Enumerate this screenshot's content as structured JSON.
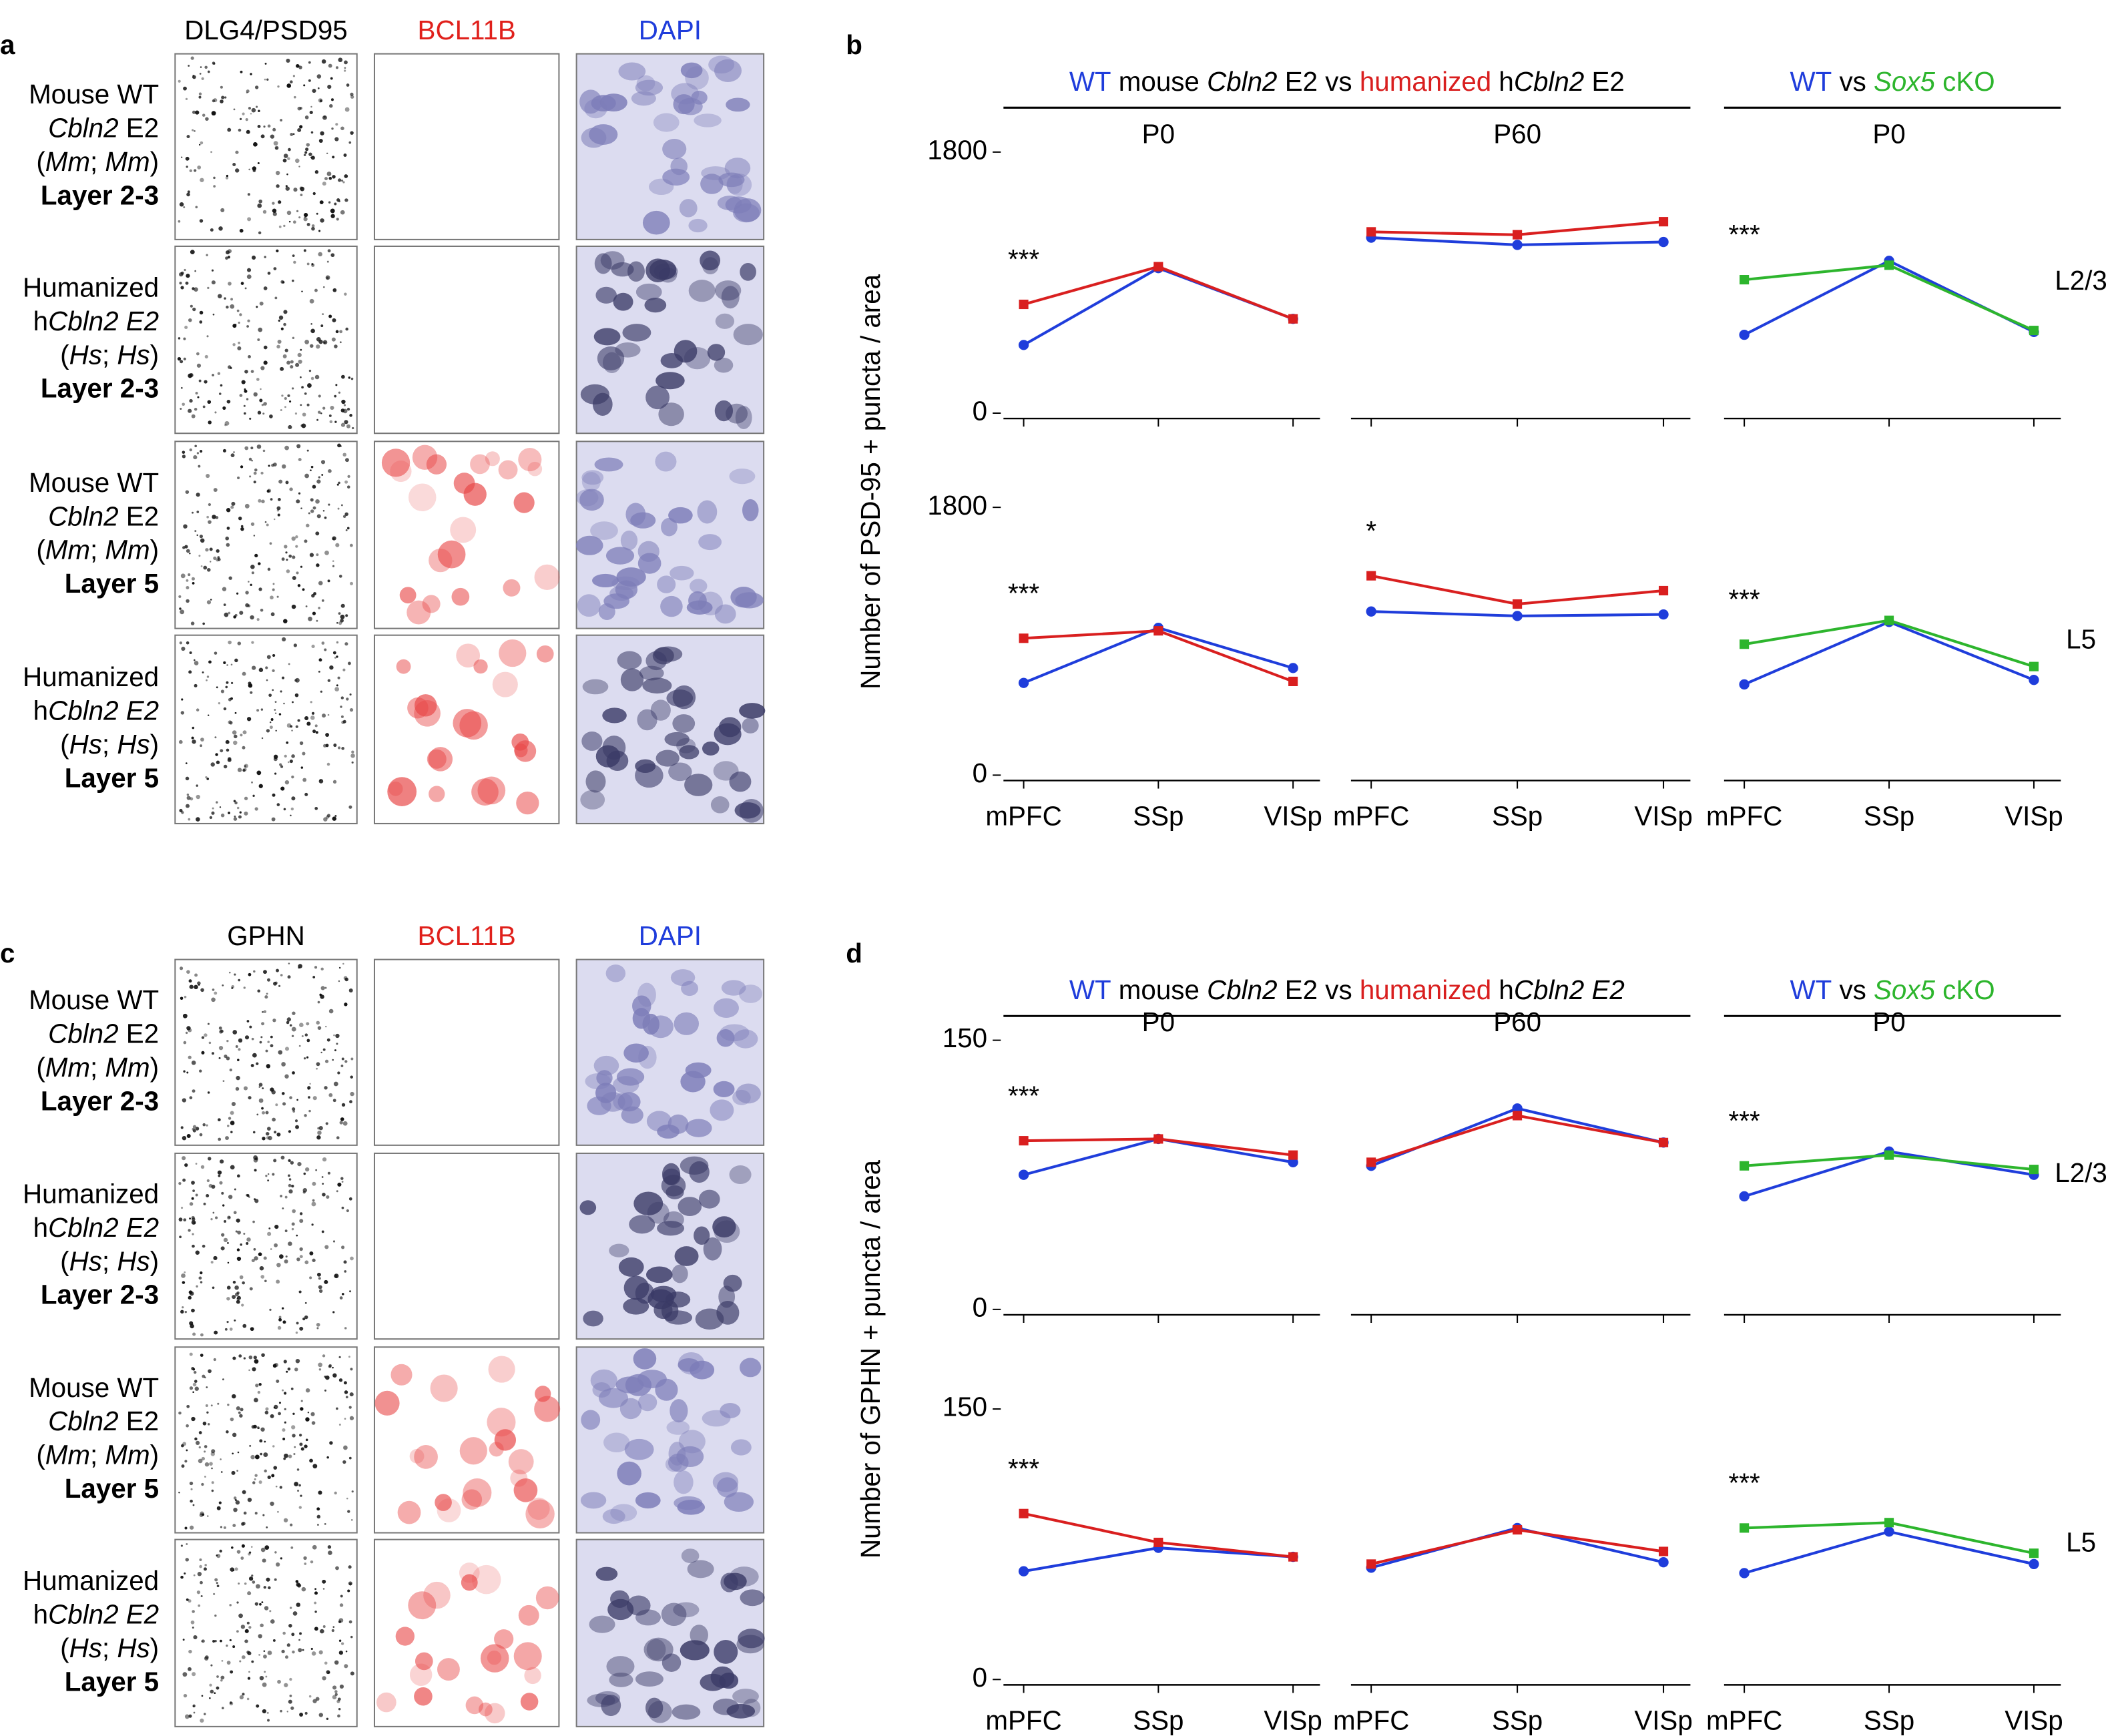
{
  "panels": [
    {
      "letter": "a",
      "columns": [
        {
          "label": "DLG4/PSD95",
          "color": "#000000"
        },
        {
          "label": "BCL11B",
          "color": "#e0201b"
        },
        {
          "label": "DAPI",
          "color": "#1f3ddb"
        }
      ],
      "rows": [
        [
          [
            {
              "text": "Mouse WT"
            }
          ],
          [
            {
              "text": "Cbln2",
              "italic": true
            },
            {
              "text": " E2"
            }
          ],
          [
            {
              "text": "("
            },
            {
              "text": "Mm",
              "italic": true
            },
            {
              "text": "; "
            },
            {
              "text": "Mm",
              "italic": true
            },
            {
              "text": ")"
            }
          ],
          [
            {
              "text": "Layer 2-3",
              "bold": true
            }
          ]
        ],
        [
          [
            {
              "text": "Humanized"
            }
          ],
          [
            {
              "text": "h"
            },
            {
              "text": "Cbln2 E2",
              "italic": true
            }
          ],
          [
            {
              "text": "("
            },
            {
              "text": "Hs",
              "italic": true
            },
            {
              "text": "; "
            },
            {
              "text": "Hs",
              "italic": true
            },
            {
              "text": ")"
            }
          ],
          [
            {
              "text": "Layer 2-3",
              "bold": true
            }
          ]
        ],
        [
          [
            {
              "text": "Mouse WT"
            }
          ],
          [
            {
              "text": "Cbln2",
              "italic": true
            },
            {
              "text": " E2"
            }
          ],
          [
            {
              "text": "("
            },
            {
              "text": "Mm",
              "italic": true
            },
            {
              "text": "; "
            },
            {
              "text": "Mm",
              "italic": true
            },
            {
              "text": ")"
            }
          ],
          [
            {
              "text": "Layer 5",
              "bold": true
            }
          ]
        ],
        [
          [
            {
              "text": "Humanized"
            }
          ],
          [
            {
              "text": "h"
            },
            {
              "text": "Cbln2 E2",
              "italic": true
            }
          ],
          [
            {
              "text": "("
            },
            {
              "text": "Hs",
              "italic": true
            },
            {
              "text": "; "
            },
            {
              "text": "Hs",
              "italic": true
            },
            {
              "text": ")"
            }
          ],
          [
            {
              "text": "Layer 5",
              "bold": true
            }
          ]
        ]
      ]
    },
    {
      "letter": "b",
      "headers": [
        [
          {
            "text": "WT",
            "color": "#1f3ddb"
          },
          {
            "text": " mouse "
          },
          {
            "text": "Cbln2",
            "italic": true
          },
          {
            "text": " E2 vs "
          },
          {
            "text": "humanized",
            "color": "#d91f1f"
          },
          {
            "text": " h"
          },
          {
            "text": "Cbln2",
            "italic": true
          },
          {
            "text": " E2"
          }
        ],
        [
          {
            "text": "WT",
            "color": "#1f3ddb"
          },
          {
            "text": " vs "
          },
          {
            "text": "Sox5",
            "italic": true,
            "color": "#2db52d"
          },
          {
            "text": " cKO",
            "color": "#2db52d"
          }
        ]
      ],
      "ylabel": "Number of PSD-95 + puncta / area"
    },
    {
      "letter": "c",
      "columns": [
        {
          "label": "GPHN",
          "color": "#000000"
        },
        {
          "label": "BCL11B",
          "color": "#e0201b"
        },
        {
          "label": "DAPI",
          "color": "#1f3ddb"
        }
      ],
      "rows": [
        [
          [
            {
              "text": "Mouse WT"
            }
          ],
          [
            {
              "text": "Cbln2",
              "italic": true
            },
            {
              "text": " E2"
            }
          ],
          [
            {
              "text": "("
            },
            {
              "text": "Mm",
              "italic": true
            },
            {
              "text": "; "
            },
            {
              "text": "Mm",
              "italic": true
            },
            {
              "text": ")"
            }
          ],
          [
            {
              "text": "Layer 2-3",
              "bold": true
            }
          ]
        ],
        [
          [
            {
              "text": "Humanized"
            }
          ],
          [
            {
              "text": "h"
            },
            {
              "text": "Cbln2 E2",
              "italic": true
            }
          ],
          [
            {
              "text": "("
            },
            {
              "text": "Hs",
              "italic": true
            },
            {
              "text": "; "
            },
            {
              "text": "Hs",
              "italic": true
            },
            {
              "text": ")"
            }
          ],
          [
            {
              "text": "Layer 2-3",
              "bold": true
            }
          ]
        ],
        [
          [
            {
              "text": "Mouse WT"
            }
          ],
          [
            {
              "text": "Cbln2",
              "italic": true
            },
            {
              "text": " E2"
            }
          ],
          [
            {
              "text": "("
            },
            {
              "text": "Mm",
              "italic": true
            },
            {
              "text": "; "
            },
            {
              "text": "Mm",
              "italic": true
            },
            {
              "text": ")"
            }
          ],
          [
            {
              "text": "Layer 5",
              "bold": true
            }
          ]
        ],
        [
          [
            {
              "text": "Humanized"
            }
          ],
          [
            {
              "text": "h"
            },
            {
              "text": "Cbln2 E2",
              "italic": true
            }
          ],
          [
            {
              "text": "("
            },
            {
              "text": "Hs",
              "italic": true
            },
            {
              "text": "; "
            },
            {
              "text": "Hs",
              "italic": true
            },
            {
              "text": ")"
            }
          ],
          [
            {
              "text": "Layer 5",
              "bold": true
            }
          ]
        ]
      ]
    },
    {
      "letter": "d",
      "headers": [
        [
          {
            "text": "WT",
            "color": "#1f3ddb"
          },
          {
            "text": " mouse "
          },
          {
            "text": "Cbln2",
            "italic": true
          },
          {
            "text": " E2 vs "
          },
          {
            "text": "humanized",
            "color": "#d91f1f"
          },
          {
            "text": " h"
          },
          {
            "text": "Cbln2 E2",
            "italic": true
          }
        ],
        [
          {
            "text": "WT",
            "color": "#1f3ddb"
          },
          {
            "text": " vs "
          },
          {
            "text": "Sox5",
            "italic": true,
            "color": "#2db52d"
          },
          {
            "text": " cKO",
            "color": "#2db52d"
          }
        ]
      ],
      "ylabel": "Number of GPHN + puncta / area"
    }
  ],
  "chart_data": [
    {
      "type": "line",
      "title": "P0",
      "categories": [
        null,
        null,
        null
      ],
      "ylim": [
        0,
        1800
      ],
      "yticks": [
        0,
        1800
      ],
      "annotation": "***",
      "series": [
        {
          "color": "#1f3ddb",
          "marker": "circle",
          "values": [
            470,
            1000,
            650
          ]
        },
        {
          "color": "#d91f1f",
          "marker": "square",
          "values": [
            750,
            1010,
            650
          ]
        }
      ]
    },
    {
      "type": "line",
      "title": "P60",
      "categories": [
        null,
        null,
        null
      ],
      "ylim": [
        0,
        1800
      ],
      "series": [
        {
          "color": "#1f3ddb",
          "marker": "circle",
          "values": [
            1210,
            1160,
            1180
          ]
        },
        {
          "color": "#d91f1f",
          "marker": "square",
          "values": [
            1250,
            1230,
            1320
          ]
        }
      ]
    },
    {
      "type": "line",
      "title": "P0",
      "categories": [
        null,
        null,
        null
      ],
      "ylim": [
        0,
        1800
      ],
      "annotation": "***",
      "row_label": "L2/3",
      "series": [
        {
          "color": "#1f3ddb",
          "marker": "circle",
          "values": [
            540,
            1050,
            560
          ]
        },
        {
          "color": "#2db52d",
          "marker": "square",
          "values": [
            920,
            1020,
            570
          ]
        }
      ]
    },
    {
      "type": "line",
      "categories": [
        "mPFC",
        "SSp",
        "VISp"
      ],
      "ylim": [
        0,
        1800
      ],
      "yticks": [
        0,
        1800
      ],
      "annotation": "***",
      "series": [
        {
          "color": "#1f3ddb",
          "marker": "circle",
          "values": [
            620,
            990,
            720
          ]
        },
        {
          "color": "#d91f1f",
          "marker": "square",
          "values": [
            920,
            970,
            630
          ]
        }
      ]
    },
    {
      "type": "line",
      "categories": [
        "mPFC",
        "SSp",
        "VISp"
      ],
      "ylim": [
        0,
        1800
      ],
      "annotation": "*",
      "series": [
        {
          "color": "#1f3ddb",
          "marker": "circle",
          "values": [
            1100,
            1070,
            1080
          ]
        },
        {
          "color": "#d91f1f",
          "marker": "square",
          "values": [
            1340,
            1150,
            1240
          ]
        }
      ]
    },
    {
      "type": "line",
      "categories": [
        "mPFC",
        "SSp",
        "VISp"
      ],
      "ylim": [
        0,
        1800
      ],
      "annotation": "***",
      "row_label": "L5",
      "series": [
        {
          "color": "#1f3ddb",
          "marker": "circle",
          "values": [
            610,
            1030,
            640
          ]
        },
        {
          "color": "#2db52d",
          "marker": "square",
          "values": [
            880,
            1040,
            730
          ]
        }
      ]
    },
    {
      "type": "line",
      "title": "P0",
      "categories": [
        null,
        null,
        null
      ],
      "ylim": [
        0,
        150
      ],
      "yticks": [
        0,
        150
      ],
      "annotation": "***",
      "series": [
        {
          "color": "#1f3ddb",
          "marker": "circle",
          "values": [
            75,
            95,
            82
          ]
        },
        {
          "color": "#d91f1f",
          "marker": "square",
          "values": [
            94,
            95,
            86
          ]
        }
      ]
    },
    {
      "type": "line",
      "title": "P60",
      "categories": [
        null,
        null,
        null
      ],
      "ylim": [
        0,
        150
      ],
      "series": [
        {
          "color": "#1f3ddb",
          "marker": "circle",
          "values": [
            80,
            112,
            93
          ]
        },
        {
          "color": "#d91f1f",
          "marker": "square",
          "values": [
            82,
            108,
            93
          ]
        }
      ]
    },
    {
      "type": "line",
      "title": "P0",
      "categories": [
        null,
        null,
        null
      ],
      "ylim": [
        0,
        150
      ],
      "annotation": "***",
      "row_label": "L2/3",
      "series": [
        {
          "color": "#1f3ddb",
          "marker": "circle",
          "values": [
            63,
            88,
            75
          ]
        },
        {
          "color": "#2db52d",
          "marker": "square",
          "values": [
            80,
            86,
            78
          ]
        }
      ]
    },
    {
      "type": "line",
      "categories": [
        "mPFC",
        "SSp",
        "VISp"
      ],
      "ylim": [
        0,
        150
      ],
      "yticks": [
        0,
        150
      ],
      "annotation": "***",
      "series": [
        {
          "color": "#1f3ddb",
          "marker": "circle",
          "values": [
            60,
            73,
            68
          ]
        },
        {
          "color": "#d91f1f",
          "marker": "square",
          "values": [
            92,
            76,
            68
          ]
        }
      ]
    },
    {
      "type": "line",
      "categories": [
        "mPFC",
        "SSp",
        "VISp"
      ],
      "ylim": [
        0,
        150
      ],
      "series": [
        {
          "color": "#1f3ddb",
          "marker": "circle",
          "values": [
            62,
            84,
            65
          ]
        },
        {
          "color": "#d91f1f",
          "marker": "square",
          "values": [
            64,
            83,
            71
          ]
        }
      ]
    },
    {
      "type": "line",
      "categories": [
        "mPFC",
        "SSp",
        "VISp"
      ],
      "ylim": [
        0,
        150
      ],
      "annotation": "***",
      "row_label": "L5",
      "series": [
        {
          "color": "#1f3ddb",
          "marker": "circle",
          "values": [
            59,
            82,
            64
          ]
        },
        {
          "color": "#2db52d",
          "marker": "square",
          "values": [
            84,
            87,
            70
          ]
        }
      ]
    }
  ]
}
